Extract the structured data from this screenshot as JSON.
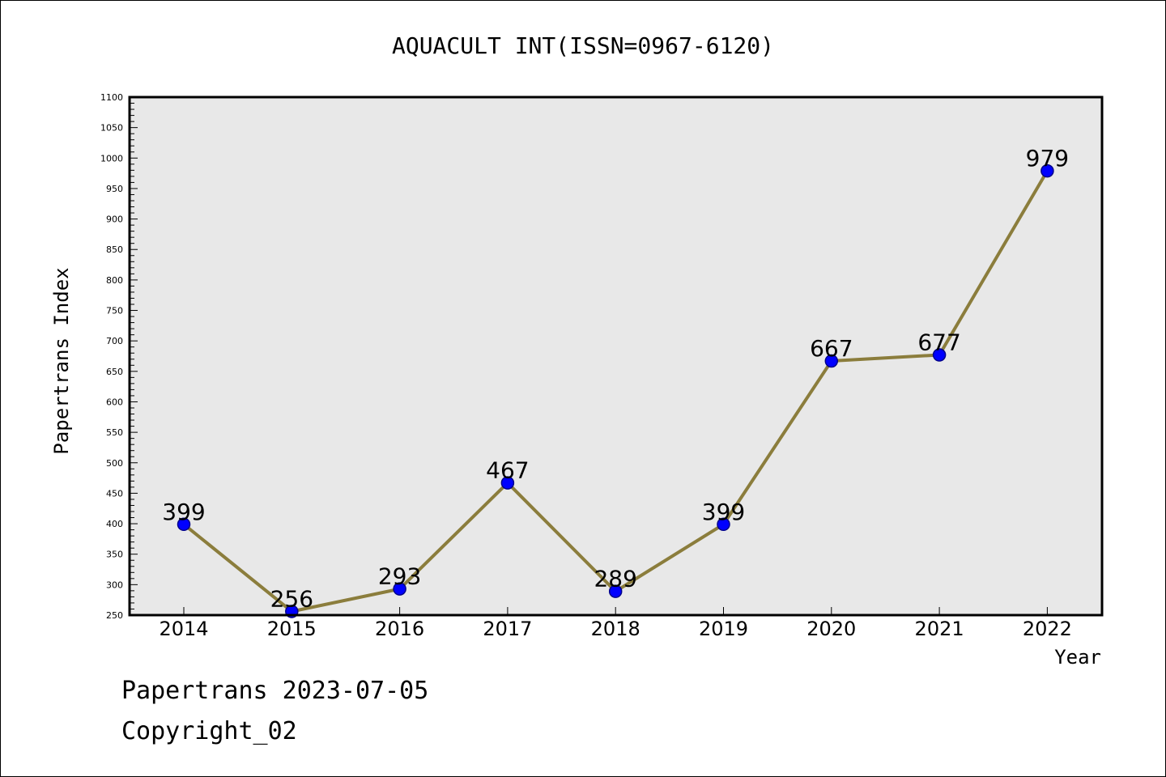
{
  "chart_data": {
    "type": "line",
    "title": "AQUACULT INT(ISSN=0967-6120)",
    "xlabel": "Year",
    "ylabel": "Papertrans Index",
    "categories": [
      "2014",
      "2015",
      "2016",
      "2017",
      "2018",
      "2019",
      "2020",
      "2021",
      "2022"
    ],
    "series": [
      {
        "values": [
          399,
          256,
          293,
          467,
          289,
          399,
          667,
          677,
          979
        ]
      }
    ],
    "data_labels": [
      "399",
      "256",
      "293",
      "467",
      "289",
      "399",
      "667",
      "677",
      "979"
    ],
    "ylim": [
      250,
      1100
    ],
    "yticks_major": [
      250,
      300,
      350,
      400,
      450,
      500,
      550,
      600,
      650,
      700,
      750,
      800,
      850,
      900,
      950,
      1000,
      1050,
      1100
    ],
    "ytick_minor_step": 10,
    "grid": false,
    "legend": "none",
    "colors": {
      "line": "#8b7d3c",
      "marker_fill": "#0000ff",
      "marker_stroke": "#00008b",
      "plot_bg": "#e8e8e8"
    }
  },
  "footer": {
    "line1": "Papertrans 2023-07-05",
    "line2": "Copyright_02"
  }
}
